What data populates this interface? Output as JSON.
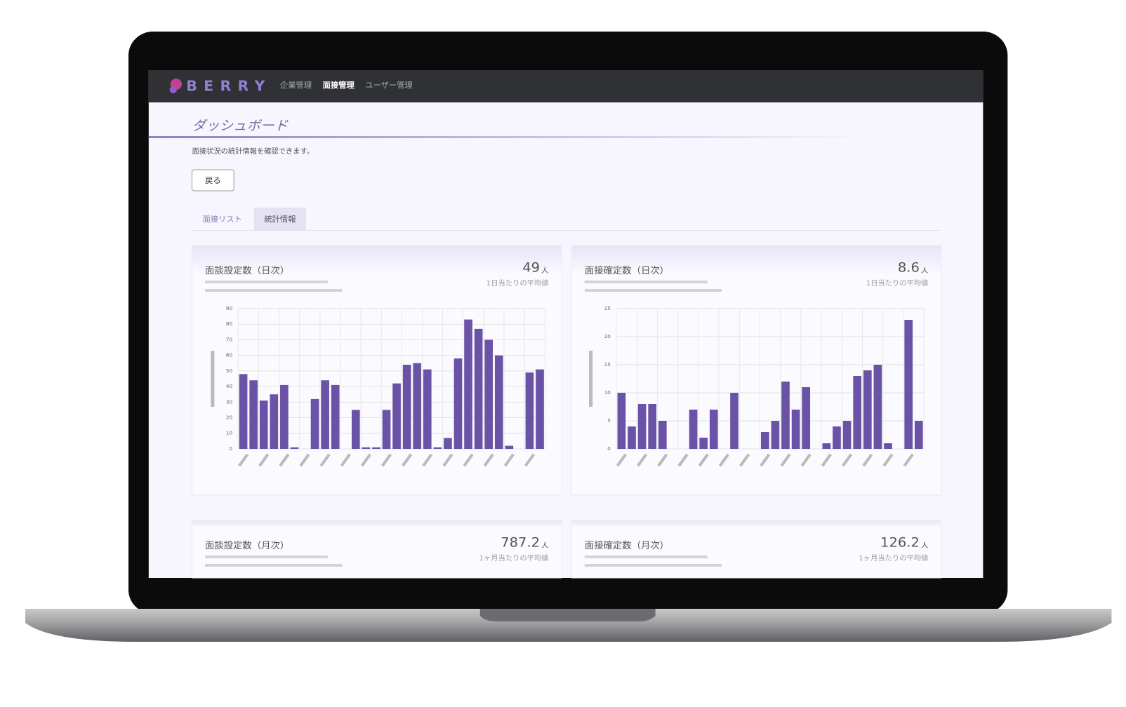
{
  "nav": {
    "brand": "BERRY",
    "items": [
      "企業管理",
      "面接管理",
      "ユーザー管理"
    ]
  },
  "page": {
    "title": "ダッシュボード",
    "description": "面接状況の統計情報を確認できます。",
    "back_button": "戻る",
    "tabs": [
      "面接リスト",
      "統計情報"
    ]
  },
  "cards": [
    {
      "title": "面談設定数（日次）",
      "value": 49,
      "unit": "人",
      "caption": "1日当たりの平均値"
    },
    {
      "title": "面接確定数（日次）",
      "value": 8.6,
      "unit": "人",
      "caption": "1日当たりの平均値"
    },
    {
      "title": "面談設定数（月次）",
      "value": 787.2,
      "unit": "人",
      "caption": "1ヶ月当たりの平均値"
    },
    {
      "title": "面接確定数（月次）",
      "value": 126.2,
      "unit": "人",
      "caption": "1ヶ月当たりの平均値"
    }
  ],
  "chart_data": [
    {
      "type": "bar",
      "color": "#6a53a6",
      "grid": true,
      "ylim": [
        0,
        90
      ],
      "yticks": [
        0,
        10,
        20,
        30,
        40,
        50,
        60,
        70,
        80,
        90
      ],
      "categories": [
        null,
        null,
        null,
        null,
        null,
        null,
        null,
        null,
        null,
        null,
        null,
        null,
        null,
        null,
        null,
        null,
        null,
        null,
        null,
        null,
        null,
        null,
        null,
        null,
        null,
        null,
        null,
        null,
        null,
        null
      ],
      "values": [
        48,
        44,
        31,
        35,
        41,
        1,
        0,
        32,
        44,
        41,
        0,
        25,
        1,
        1,
        25,
        42,
        54,
        55,
        51,
        1,
        7,
        58,
        83,
        77,
        70,
        60,
        2,
        0,
        49,
        51
      ]
    },
    {
      "type": "bar",
      "color": "#6a53a6",
      "grid": true,
      "ylim": [
        0,
        25
      ],
      "yticks": [
        0,
        5,
        10,
        15,
        20,
        25
      ],
      "categories": [
        null,
        null,
        null,
        null,
        null,
        null,
        null,
        null,
        null,
        null,
        null,
        null,
        null,
        null,
        null,
        null,
        null,
        null,
        null,
        null,
        null,
        null,
        null,
        null,
        null,
        null,
        null,
        null,
        null,
        null
      ],
      "values": [
        10,
        4,
        8,
        8,
        5,
        0,
        0,
        7,
        2,
        7,
        0,
        10,
        0,
        0,
        3,
        5,
        12,
        7,
        11,
        0,
        1,
        4,
        5,
        13,
        14,
        15,
        1,
        0,
        23,
        5
      ]
    }
  ]
}
